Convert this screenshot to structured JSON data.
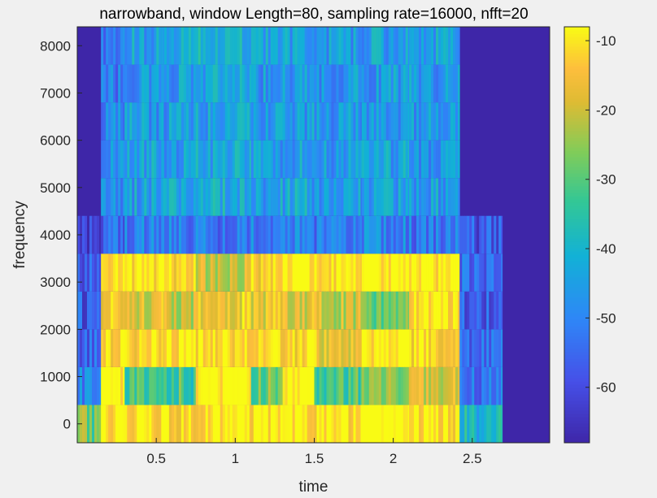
{
  "chart_data": {
    "type": "heatmap",
    "title": "narrowband, window Length=80, sampling rate=16000, nfft=20",
    "xlabel": "time",
    "ylabel": "frequency",
    "xlim": [
      0,
      2.99
    ],
    "ylim": [
      -400,
      8400
    ],
    "xticks": [
      0.5,
      1,
      1.5,
      2,
      2.5
    ],
    "xtick_labels": [
      "0.5",
      "1",
      "1.5",
      "2",
      "2.5"
    ],
    "yticks": [
      0,
      1000,
      2000,
      3000,
      4000,
      5000,
      6000,
      7000,
      8000
    ],
    "ytick_labels": [
      "0",
      "1000",
      "2000",
      "3000",
      "4000",
      "5000",
      "6000",
      "7000",
      "8000"
    ],
    "frequency_bins": [
      0,
      800,
      1600,
      2400,
      3200,
      4000,
      4800,
      5600,
      6400,
      7200,
      8000
    ],
    "colorbar": {
      "range": [
        -68,
        -8
      ],
      "ticks": [
        -10,
        -20,
        -30,
        -40,
        -50,
        -60
      ],
      "tick_labels": [
        "-10",
        "-20",
        "-30",
        "-40",
        "-50",
        "-60"
      ],
      "colormap": "parula"
    },
    "segments": [
      {
        "t": [
          0.0,
          0.15
        ],
        "level_by_bin": [
          -28,
          -50,
          -55,
          -58,
          -56,
          -60,
          -68,
          -68,
          -68,
          -68,
          -68
        ]
      },
      {
        "t": [
          0.15,
          0.3
        ],
        "level_by_bin": [
          -10,
          -10,
          -14,
          -18,
          -12,
          -55,
          -48,
          -48,
          -50,
          -52,
          -50
        ]
      },
      {
        "t": [
          0.3,
          0.55
        ],
        "level_by_bin": [
          -12,
          -30,
          -16,
          -20,
          -12,
          -50,
          -45,
          -44,
          -46,
          -47,
          -45
        ]
      },
      {
        "t": [
          0.55,
          0.75
        ],
        "level_by_bin": [
          -14,
          -32,
          -11,
          -22,
          -14,
          -50,
          -44,
          -45,
          -46,
          -46,
          -44
        ]
      },
      {
        "t": [
          0.75,
          1.1
        ],
        "level_by_bin": [
          -11,
          -9,
          -12,
          -16,
          -22,
          -52,
          -42,
          -43,
          -44,
          -44,
          -42
        ]
      },
      {
        "t": [
          1.1,
          1.3
        ],
        "level_by_bin": [
          -12,
          -28,
          -14,
          -18,
          -15,
          -50,
          -45,
          -46,
          -47,
          -46,
          -45
        ]
      },
      {
        "t": [
          1.3,
          1.5
        ],
        "level_by_bin": [
          -10,
          -9,
          -16,
          -20,
          -9,
          -48,
          -44,
          -45,
          -46,
          -46,
          -44
        ]
      },
      {
        "t": [
          1.5,
          1.8
        ],
        "level_by_bin": [
          -12,
          -30,
          -18,
          -22,
          -13,
          -52,
          -46,
          -47,
          -47,
          -47,
          -46
        ]
      },
      {
        "t": [
          1.8,
          2.1
        ],
        "level_by_bin": [
          -10,
          -26,
          -10,
          -28,
          -9,
          -50,
          -44,
          -45,
          -46,
          -46,
          -45
        ]
      },
      {
        "t": [
          2.1,
          2.42
        ],
        "level_by_bin": [
          -12,
          -22,
          -14,
          -12,
          -10,
          -52,
          -45,
          -46,
          -46,
          -46,
          -45
        ]
      },
      {
        "t": [
          2.42,
          2.69
        ],
        "level_by_bin": [
          -40,
          -52,
          -54,
          -56,
          -55,
          -58,
          -68,
          -68,
          -68,
          -68,
          -68
        ]
      },
      {
        "t": [
          2.69,
          2.99
        ],
        "level_by_bin": [
          -68,
          -68,
          -68,
          -68,
          -68,
          -68,
          -68,
          -68,
          -68,
          -68,
          -68
        ]
      }
    ]
  }
}
